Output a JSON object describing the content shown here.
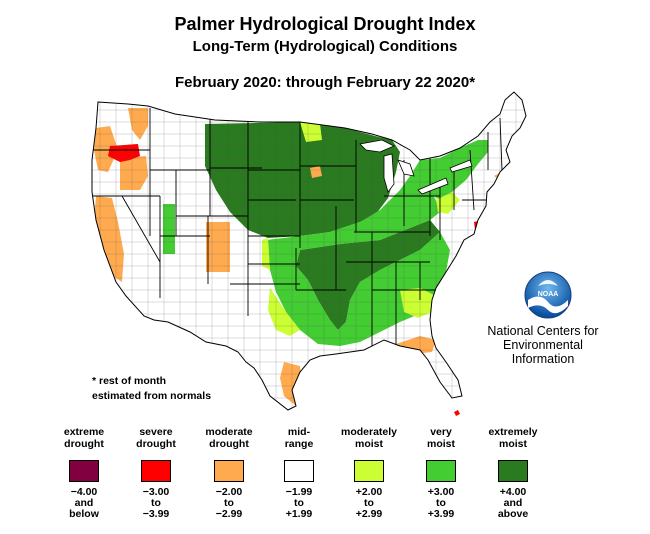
{
  "header": {
    "title": "Palmer Hydrological Drought Index",
    "subtitle": "Long-Term (Hydrological) Conditions",
    "period": "February 2020: through February 22 2020*"
  },
  "note": {
    "line1": "* rest of month",
    "line2": "estimated from normals"
  },
  "noaa": {
    "logo_text": "NOAA",
    "line1": "National Centers for",
    "line2": "Environmental",
    "line3": "Information"
  },
  "legend": [
    {
      "label": "extreme\ndrought",
      "range": "−4.00\nand\nbelow",
      "color": "#800040"
    },
    {
      "label": "severe\ndrought",
      "range": "−3.00\nto\n−3.99",
      "color": "#ff0000"
    },
    {
      "label": "moderate\ndrought",
      "range": "−2.00\nto\n−2.99",
      "color": "#ffaa4f"
    },
    {
      "label": "mid-\nrange",
      "range": "−1.99\nto\n+1.99",
      "color": "#ffffff"
    },
    {
      "label": "moderately\nmoist",
      "range": "+2.00\nto\n+2.99",
      "color": "#ccff33"
    },
    {
      "label": "very\nmoist",
      "range": "+3.00\nto\n+3.99",
      "color": "#44cc33"
    },
    {
      "label": "extremely\nmoist",
      "range": "+4.00\nand\nabove",
      "color": "#2a7a1f"
    }
  ]
}
